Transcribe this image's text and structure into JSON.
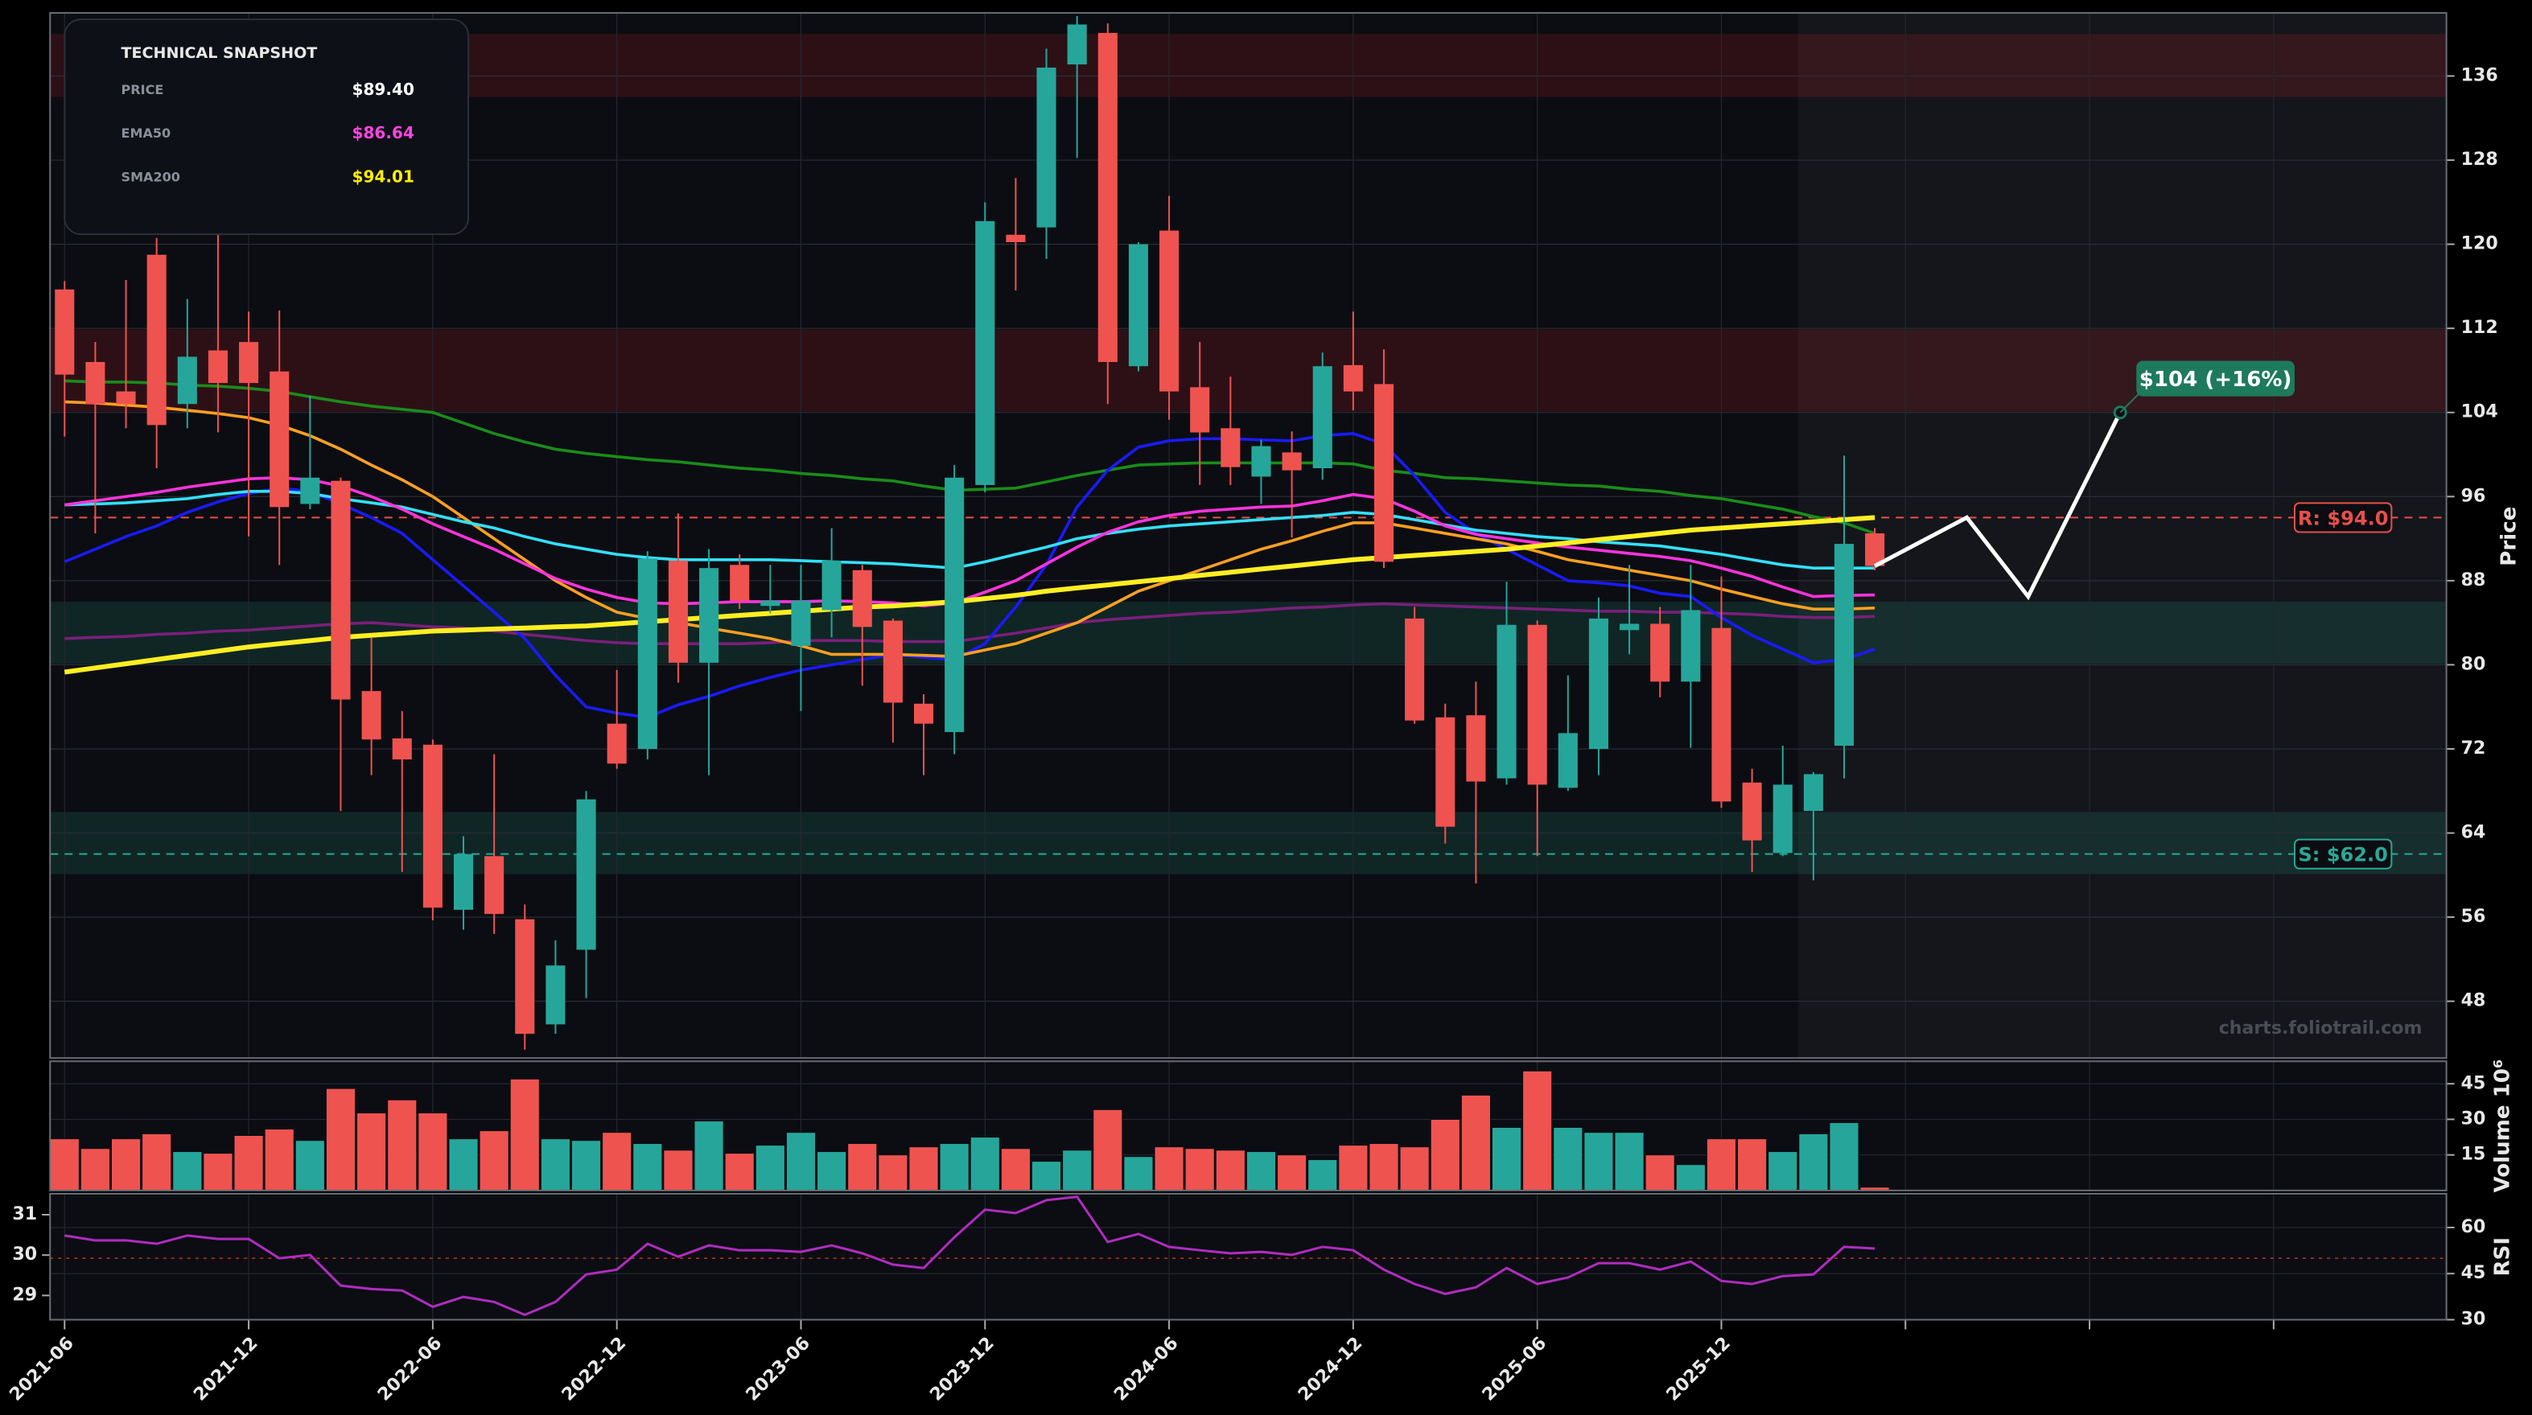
{
  "chart_data": [
    {
      "type": "candlestick",
      "x": [
        "2021-06",
        "2021-07",
        "2021-08",
        "2021-09",
        "2021-10",
        "2021-11",
        "2021-12",
        "2022-01",
        "2022-02",
        "2022-03",
        "2022-04",
        "2022-05",
        "2022-06",
        "2022-07",
        "2022-08",
        "2022-09",
        "2022-10",
        "2022-11",
        "2022-12",
        "2023-01",
        "2023-02",
        "2023-03",
        "2023-04",
        "2023-05",
        "2023-06",
        "2023-07",
        "2023-08",
        "2023-09",
        "2023-10",
        "2023-11",
        "2023-12",
        "2024-01",
        "2024-02",
        "2024-03",
        "2024-04",
        "2024-05",
        "2024-06",
        "2024-07",
        "2024-08",
        "2024-09",
        "2024-10",
        "2024-11",
        "2024-12",
        "2025-01",
        "2025-02",
        "2025-03",
        "2025-04",
        "2025-05",
        "2025-06",
        "2025-07",
        "2025-08",
        "2025-09",
        "2025-10",
        "2025-11",
        "2025-12",
        "2026-01",
        "2026-02",
        "2026-03",
        "2026-04",
        "2026-05"
      ],
      "open": [
        115.7,
        108.8,
        106.0,
        119.0,
        104.8,
        109.9,
        110.7,
        107.9,
        95.3,
        97.5,
        77.5,
        73.0,
        72.4,
        56.7,
        61.8,
        55.8,
        45.8,
        52.9,
        74.4,
        72.0,
        89.9,
        80.2,
        89.5,
        85.6,
        81.8,
        85.2,
        89.0,
        84.2,
        76.3,
        73.6,
        97.1,
        120.9,
        121.6,
        137.1,
        140.1,
        108.4,
        121.3,
        106.4,
        102.5,
        97.9,
        100.2,
        98.7,
        108.5,
        106.7,
        84.4,
        75.0,
        75.2,
        69.2,
        83.8,
        68.3,
        72.0,
        83.3,
        83.9,
        78.4,
        83.5,
        68.8,
        62.1,
        66.1,
        72.3,
        92.5
      ],
      "high": [
        116.5,
        110.7,
        116.6,
        120.6,
        114.8,
        125.4,
        113.6,
        113.7,
        105.6,
        97.8,
        82.6,
        75.6,
        72.9,
        63.7,
        71.5,
        57.2,
        53.8,
        68.0,
        79.5,
        90.8,
        94.4,
        91.0,
        90.5,
        89.5,
        89.5,
        93.0,
        89.5,
        84.4,
        77.2,
        99.0,
        124.0,
        126.3,
        138.6,
        141.7,
        141.0,
        120.2,
        124.6,
        110.7,
        107.4,
        101.4,
        102.2,
        109.7,
        113.6,
        110.0,
        85.5,
        76.3,
        78.4,
        87.9,
        84.2,
        79.0,
        86.4,
        89.5,
        85.5,
        89.5,
        88.4,
        70.1,
        72.3,
        69.8,
        99.9,
        93.0
      ],
      "low": [
        101.7,
        92.5,
        102.5,
        98.7,
        102.5,
        102.1,
        92.2,
        89.5,
        94.8,
        66.1,
        69.5,
        60.3,
        55.7,
        54.8,
        54.4,
        43.4,
        44.9,
        48.3,
        70.1,
        71.0,
        78.3,
        69.5,
        85.3,
        84.9,
        75.6,
        82.6,
        78.0,
        72.6,
        69.5,
        71.5,
        96.4,
        115.6,
        118.6,
        128.2,
        104.8,
        107.9,
        103.3,
        97.1,
        97.1,
        95.3,
        92.1,
        97.6,
        104.2,
        89.2,
        74.4,
        63.0,
        59.2,
        68.6,
        61.8,
        68.0,
        69.5,
        81.0,
        76.9,
        72.1,
        66.4,
        60.3,
        61.8,
        59.5,
        69.2,
        89.0
      ],
      "close": [
        107.6,
        104.8,
        104.8,
        102.8,
        109.3,
        106.8,
        106.8,
        95.0,
        97.8,
        76.7,
        72.9,
        71.0,
        56.9,
        62.0,
        56.3,
        44.9,
        51.4,
        67.2,
        70.6,
        90.1,
        80.2,
        89.2,
        86.1,
        86.1,
        86.1,
        89.9,
        83.6,
        76.4,
        74.4,
        97.8,
        122.2,
        120.2,
        136.8,
        140.9,
        108.8,
        120.0,
        106.0,
        102.1,
        98.8,
        100.8,
        98.5,
        108.4,
        106.0,
        89.8,
        74.7,
        64.6,
        68.9,
        83.8,
        68.6,
        73.5,
        84.4,
        83.9,
        78.4,
        85.2,
        67.0,
        63.3,
        68.6,
        69.6,
        91.5,
        89.4
      ],
      "up_color": "#26a69a",
      "down_color": "#ef5350",
      "lines": [
        {
          "color": "#1a8c1a",
          "values": [
            107.0,
            106.9,
            106.9,
            106.8,
            106.6,
            106.5,
            106.3,
            106.0,
            105.5,
            105.0,
            104.6,
            104.3,
            104.0,
            103.0,
            102.0,
            101.2,
            100.5,
            100.1,
            99.8,
            99.5,
            99.3,
            99.0,
            98.7,
            98.5,
            98.2,
            98.0,
            97.7,
            97.5,
            97.0,
            96.6,
            96.7,
            96.8,
            97.4,
            98.0,
            98.5,
            99.0,
            99.1,
            99.2,
            99.2,
            99.2,
            99.2,
            99.2,
            99.1,
            98.5,
            98.2,
            97.8,
            97.7,
            97.5,
            97.3,
            97.1,
            97.0,
            96.7,
            96.5,
            96.1,
            95.8,
            95.3,
            94.8,
            94.1,
            93.5,
            92.5
          ]
        },
        {
          "color": "#7a1f7a",
          "values": [
            82.5,
            82.6,
            82.7,
            82.9,
            83.0,
            83.2,
            83.3,
            83.5,
            83.7,
            83.9,
            84.0,
            83.8,
            83.6,
            83.5,
            83.2,
            82.9,
            82.6,
            82.3,
            82.1,
            82.0,
            82.0,
            82.0,
            82.0,
            82.1,
            82.3,
            82.3,
            82.3,
            82.2,
            82.2,
            82.2,
            82.6,
            83.0,
            83.5,
            84.0,
            84.3,
            84.5,
            84.7,
            84.9,
            85.0,
            85.2,
            85.4,
            85.5,
            85.7,
            85.8,
            85.7,
            85.6,
            85.5,
            85.4,
            85.3,
            85.2,
            85.1,
            85.1,
            85.0,
            85.0,
            84.9,
            84.8,
            84.6,
            84.5,
            84.5,
            84.6
          ]
        },
        {
          "color": "#1a1aff",
          "values": [
            89.8,
            91.0,
            92.2,
            93.2,
            94.5,
            95.5,
            96.3,
            96.8,
            96.5,
            95.3,
            94.0,
            92.5,
            90.0,
            87.5,
            85.0,
            82.5,
            79.0,
            76.0,
            75.4,
            75.0,
            76.2,
            77.0,
            78.0,
            78.8,
            79.5,
            80.0,
            80.5,
            81.0,
            80.7,
            80.5,
            82.0,
            85.5,
            89.5,
            95.0,
            98.5,
            100.7,
            101.3,
            101.5,
            101.5,
            101.4,
            101.3,
            101.8,
            102.0,
            101.0,
            98.0,
            94.5,
            92.5,
            91.0,
            89.5,
            88.0,
            87.8,
            87.5,
            86.8,
            86.5,
            84.5,
            82.8,
            81.5,
            80.2,
            80.5,
            81.5
          ]
        },
        {
          "color": "#ffa020",
          "values": [
            105.0,
            104.9,
            104.7,
            104.5,
            104.2,
            103.9,
            103.5,
            102.8,
            101.8,
            100.5,
            99.0,
            97.6,
            96.0,
            94.0,
            92.0,
            90.0,
            88.0,
            86.4,
            85.0,
            84.4,
            84.0,
            83.5,
            83.0,
            82.5,
            81.8,
            81.0,
            81.0,
            81.0,
            80.9,
            80.8,
            81.4,
            82.0,
            83.0,
            84.0,
            85.5,
            87.0,
            88.0,
            89.0,
            90.0,
            91.0,
            91.8,
            92.7,
            93.5,
            93.5,
            93.0,
            92.5,
            92.0,
            91.5,
            90.8,
            90.0,
            89.5,
            89.0,
            88.5,
            88.0,
            87.2,
            86.5,
            85.8,
            85.3,
            85.3,
            85.4
          ]
        },
        {
          "color": "#33e0ff",
          "values": [
            95.2,
            95.3,
            95.4,
            95.6,
            95.8,
            96.2,
            96.5,
            96.5,
            96.3,
            95.8,
            95.4,
            95.0,
            94.3,
            93.6,
            93.0,
            92.2,
            91.5,
            91.0,
            90.5,
            90.2,
            90.0,
            90.0,
            90.0,
            90.0,
            89.9,
            89.8,
            89.7,
            89.6,
            89.4,
            89.2,
            89.8,
            90.5,
            91.2,
            92.0,
            92.5,
            92.9,
            93.2,
            93.4,
            93.6,
            93.8,
            94.0,
            94.2,
            94.5,
            94.3,
            93.8,
            93.3,
            92.8,
            92.5,
            92.2,
            92.0,
            91.7,
            91.5,
            91.3,
            90.9,
            90.5,
            90.0,
            89.5,
            89.2,
            89.2,
            89.2
          ]
        },
        {
          "color": "#ff33dd",
          "values": [
            95.2,
            95.6,
            96.0,
            96.4,
            96.9,
            97.3,
            97.7,
            97.8,
            97.6,
            97.0,
            96.0,
            94.8,
            93.4,
            92.2,
            91.0,
            89.6,
            88.2,
            87.2,
            86.4,
            85.9,
            85.8,
            85.9,
            86.0,
            86.0,
            86.0,
            86.1,
            86.0,
            85.9,
            85.6,
            85.9,
            86.9,
            88.0,
            89.6,
            91.2,
            92.6,
            93.6,
            94.2,
            94.6,
            94.8,
            95.0,
            95.1,
            95.6,
            96.2,
            95.8,
            94.6,
            93.2,
            92.4,
            92.0,
            91.6,
            91.2,
            90.9,
            90.6,
            90.3,
            89.9,
            89.2,
            88.4,
            87.4,
            86.5,
            86.6,
            86.64
          ]
        },
        {
          "color": "#ffee22",
          "values": [
            79.3,
            79.7,
            80.1,
            80.5,
            80.9,
            81.3,
            81.7,
            82.0,
            82.3,
            82.6,
            82.8,
            83.0,
            83.2,
            83.3,
            83.4,
            83.5,
            83.6,
            83.7,
            83.9,
            84.1,
            84.3,
            84.5,
            84.7,
            84.9,
            85.1,
            85.3,
            85.5,
            85.6,
            85.8,
            86.0,
            86.3,
            86.6,
            87.0,
            87.3,
            87.6,
            87.9,
            88.2,
            88.5,
            88.8,
            89.1,
            89.4,
            89.7,
            90.0,
            90.2,
            90.4,
            90.6,
            90.8,
            91.0,
            91.3,
            91.6,
            91.9,
            92.2,
            92.5,
            92.8,
            93.0,
            93.2,
            93.4,
            93.6,
            93.8,
            94.01
          ]
        }
      ],
      "zones": [
        {
          "range": [
            134.0,
            140.0
          ],
          "color": "#c8202a"
        },
        {
          "range": [
            104.1,
            111.9
          ],
          "color": "#c8202a"
        },
        {
          "range": [
            80.1,
            86.0
          ],
          "color": "#1f9a80"
        },
        {
          "range": [
            60.1,
            66.0
          ],
          "color": "#1f9a80"
        }
      ],
      "levels": [
        {
          "value": 94.0,
          "label": "R: $94.0",
          "color": "#e8504a"
        },
        {
          "value": 62.0,
          "label": "S: $62.0",
          "color": "#2aa896"
        }
      ],
      "forecast": {
        "x": [
          "2026-05",
          "2026-08",
          "2026-10",
          "2027-01"
        ],
        "values": [
          89.4,
          94.0,
          86.5,
          104
        ],
        "color": "#ffffff",
        "label": "$104 (+16%)",
        "label_color": "#1e7a5c"
      },
      "shade_from": "2026-02",
      "xlim": [
        "2021-06",
        "2027-11"
      ],
      "ylim": [
        42.6,
        142.0
      ],
      "yticks": [
        48,
        56,
        64,
        72,
        80,
        88,
        96,
        104,
        112,
        120,
        128,
        136
      ],
      "xticks": [
        "2021-06",
        "2021-12",
        "2022-06",
        "2022-12",
        "2023-06",
        "2023-12",
        "2024-06",
        "2024-12",
        "2025-06",
        "2025-12",
        {
          "value": "2026-06",
          "label": null
        },
        {
          "value": "2026-12",
          "label": null
        },
        {
          "value": "2027-06",
          "label": null
        }
      ],
      "y_label": "Price",
      "grid": true,
      "watermark": "charts.foliotrail.com"
    },
    {
      "type": "bar",
      "values": [
        21.8,
        17.7,
        21.8,
        23.9,
        16.4,
        15.7,
        23.2,
        25.9,
        21.1,
        43.0,
        32.7,
        38.2,
        32.7,
        21.8,
        25.2,
        47.0,
        21.8,
        21.1,
        24.5,
        19.8,
        17.0,
        29.3,
        15.7,
        19.1,
        24.5,
        16.4,
        19.8,
        15.0,
        18.4,
        19.8,
        22.5,
        17.7,
        12.3,
        17.0,
        34.1,
        14.3,
        18.4,
        17.7,
        17.0,
        16.4,
        15.0,
        13.0,
        19.1,
        19.8,
        18.4,
        30.0,
        40.2,
        26.6,
        50.4,
        26.6,
        24.5,
        24.5,
        15.0,
        10.9,
        21.8,
        21.8,
        16.4,
        23.9,
        28.6,
        1.4
      ],
      "ylim": [
        0,
        54.5
      ],
      "yticks": [
        15,
        30,
        45
      ],
      "y_label": "Volume  10⁶"
    },
    {
      "type": "line",
      "series": [
        {
          "color": "#b02cc0",
          "axis": "y2",
          "values": [
            57.4,
            55.8,
            55.8,
            54.7,
            57.4,
            56.3,
            56.3,
            50.0,
            51.1,
            41.1,
            40.0,
            39.5,
            34.2,
            37.4,
            35.8,
            31.6,
            35.8,
            44.7,
            46.3,
            54.7,
            50.5,
            54.2,
            52.6,
            52.6,
            52.1,
            54.2,
            51.6,
            47.9,
            46.8,
            56.8,
            65.8,
            64.7,
            68.9,
            70.0,
            55.3,
            57.9,
            53.7,
            52.6,
            51.6,
            52.1,
            51.1,
            53.7,
            52.6,
            46.3,
            41.6,
            38.4,
            40.5,
            46.8,
            41.6,
            43.7,
            48.4,
            48.4,
            46.3,
            48.9,
            42.6,
            41.6,
            44.2,
            44.7,
            53.7,
            53.2
          ]
        }
      ],
      "midline": 50,
      "ylim": [
        28.4,
        31.52
      ],
      "yticks": [
        29,
        30,
        31
      ],
      "y2lim": [
        30,
        71
      ],
      "y2ticks": [
        30,
        45,
        60
      ],
      "y_label": "RSI"
    }
  ],
  "snapshot": {
    "title": "TECHNICAL SNAPSHOT",
    "rows": [
      {
        "label": "PRICE",
        "value": "$89.40",
        "color": "#ffffff"
      },
      {
        "label": "EMA50",
        "value": "$86.64",
        "color": "#ff44e0"
      },
      {
        "label": "SMA200",
        "value": "$94.01",
        "color": "#ffee00"
      }
    ]
  }
}
